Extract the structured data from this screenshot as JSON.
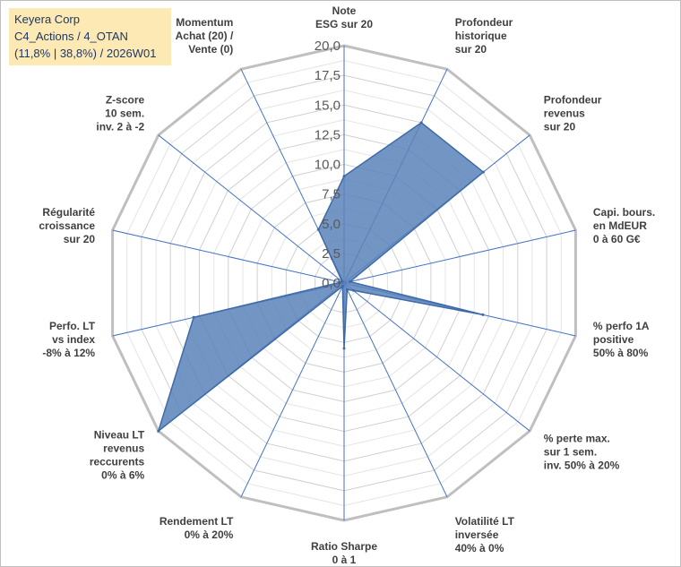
{
  "header": {
    "line1": "Keyera Corp",
    "line2": "C4_Actions / 4_OTAN",
    "line3": "(11,8% | 38,8%) / 2026W01"
  },
  "chart_data": {
    "type": "radar",
    "title": "",
    "rmin": 0,
    "rmax": 20,
    "ticks": [
      "0,0",
      "2,5",
      "5,0",
      "7,5",
      "10,0",
      "12,5",
      "15,0",
      "17,5",
      "20,0"
    ],
    "tick_values": [
      0,
      2.5,
      5,
      7.5,
      10,
      12.5,
      15,
      17.5,
      20
    ],
    "minor_step": 1.25,
    "grid": true,
    "fill_color": "#5b82b9",
    "stroke_color": "#3d6aa8",
    "axis_color": "#4472c4",
    "axes": [
      {
        "label": [
          "Note",
          "ESG sur 20"
        ],
        "value": 9.0
      },
      {
        "label": [
          "Profondeur",
          "historique",
          "sur 20"
        ],
        "value": 15.0
      },
      {
        "label": [
          "Profondeur",
          "revenus",
          "sur 20"
        ],
        "value": 15.0
      },
      {
        "label": [
          "Capi. bours.",
          "en MdEUR",
          "0 à 60 G€"
        ],
        "value": 0.5
      },
      {
        "label": [
          "% perfo 1A",
          "positive",
          "50% à 80%"
        ],
        "value": 12.0
      },
      {
        "label": [
          "% perte max.",
          "sur 1 sem.",
          "inv. 50% à 20%"
        ],
        "value": 1.0
      },
      {
        "label": [
          "Volatilité LT",
          "inversée",
          "40% à 0%"
        ],
        "value": 0.6
      },
      {
        "label": [
          "Ratio Sharpe",
          "0 à 1"
        ],
        "value": 5.5
      },
      {
        "label": [
          "Rendement LT",
          "0% à 20%"
        ],
        "value": 0.3
      },
      {
        "label": [
          "Niveau LT",
          "revenus",
          "reccurents",
          "0% à 6%"
        ],
        "value": 20.0
      },
      {
        "label": [
          "Perfo. LT",
          "vs index",
          "-8% à 12%"
        ],
        "value": 13.0
      },
      {
        "label": [
          "Régularité",
          "croissance",
          "sur 20"
        ],
        "value": 0.3
      },
      {
        "label": [
          "Z-score",
          "10 sem.",
          "inv. 2 à -2"
        ],
        "value": 0.2
      },
      {
        "label": [
          "Momentum",
          "Achat (20) /",
          "Vente (0)"
        ],
        "value": 5.0
      }
    ]
  }
}
